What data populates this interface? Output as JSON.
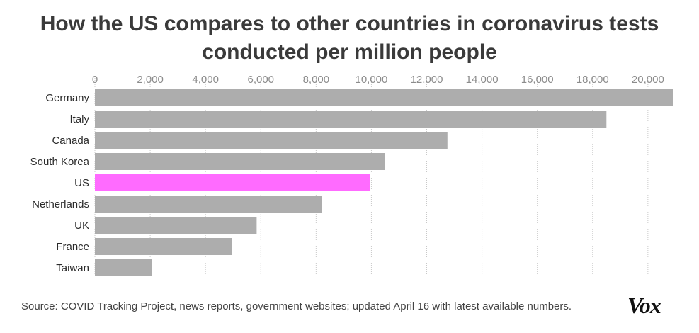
{
  "chart_data": {
    "type": "bar",
    "orientation": "horizontal",
    "title": "How the US compares to other countries in coronavirus tests conducted per million people",
    "title_lines": [
      "How the US compares to other countries in coronavirus tests",
      "conducted per million people"
    ],
    "categories": [
      "Germany",
      "Italy",
      "Canada",
      "South Korea",
      "US",
      "Netherlands",
      "UK",
      "France",
      "Taiwan"
    ],
    "values": [
      20900,
      18500,
      12750,
      10500,
      9950,
      8200,
      5850,
      4950,
      2050
    ],
    "highlight": "US",
    "colors": {
      "default": "#adadad",
      "highlight": "#ff6bff",
      "grid": "#c8c8c8"
    },
    "xlim": [
      0,
      20900
    ],
    "xticks": [
      0,
      2000,
      4000,
      6000,
      8000,
      10000,
      12000,
      14000,
      16000,
      18000,
      20000
    ],
    "xtick_labels": [
      "0",
      "2,000",
      "4,000",
      "6,000",
      "8,000",
      "10,000",
      "12,000",
      "14,000",
      "16,000",
      "18,000",
      "20,000"
    ],
    "xaxis_position": "top",
    "grid": true,
    "xlabel": "",
    "ylabel": ""
  },
  "source": "Source: COVID Tracking Project, news reports, government websites; updated April 16 with latest available numbers.",
  "logo_text": "Vox"
}
